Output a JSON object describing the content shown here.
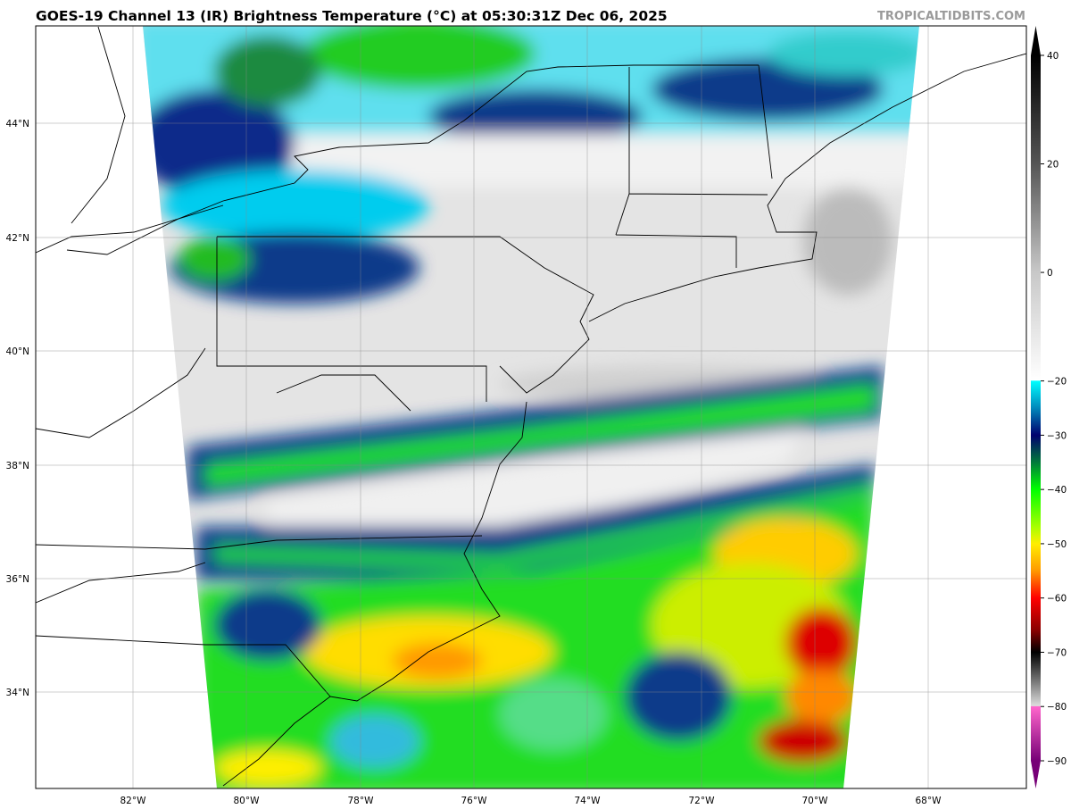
{
  "title": "GOES-19 Channel 13 (IR) Brightness Temperature (°C) at 05:30:31Z Dec 06, 2025",
  "credit": "TROPICALTIDBITS.COM",
  "map": {
    "lat_labels": [
      "44°N",
      "42°N",
      "40°N",
      "38°N",
      "36°N",
      "34°N"
    ],
    "lon_labels": [
      "82°W",
      "80°W",
      "78°W",
      "76°W",
      "74°W",
      "72°W",
      "70°W",
      "68°W"
    ],
    "grid": true
  },
  "colorbar": {
    "min": -90,
    "max": 40,
    "ticks": [
      "40",
      "20",
      "0",
      "−20",
      "−30",
      "−40",
      "−50",
      "−60",
      "−70",
      "−80",
      "−90"
    ],
    "tick_values": [
      40,
      20,
      0,
      -20,
      -30,
      -40,
      -50,
      -60,
      -70,
      -80,
      -90
    ],
    "stops": [
      {
        "v": 40,
        "c": "#000000"
      },
      {
        "v": 20,
        "c": "#555555"
      },
      {
        "v": 0,
        "c": "#c8c8c8"
      },
      {
        "v": -19.9,
        "c": "#ffffff"
      },
      {
        "v": -20,
        "c": "#00ffff"
      },
      {
        "v": -25,
        "c": "#0088bb"
      },
      {
        "v": -30,
        "c": "#00006e"
      },
      {
        "v": -35,
        "c": "#007a3a"
      },
      {
        "v": -40,
        "c": "#00ff00"
      },
      {
        "v": -47,
        "c": "#aaff00"
      },
      {
        "v": -50,
        "c": "#ffee00"
      },
      {
        "v": -55,
        "c": "#ff9900"
      },
      {
        "v": -60,
        "c": "#ff0000"
      },
      {
        "v": -66,
        "c": "#880000"
      },
      {
        "v": -70,
        "c": "#000000"
      },
      {
        "v": -79.9,
        "c": "#dddddd"
      },
      {
        "v": -80,
        "c": "#ff66cc"
      },
      {
        "v": -90,
        "c": "#770077"
      }
    ]
  }
}
